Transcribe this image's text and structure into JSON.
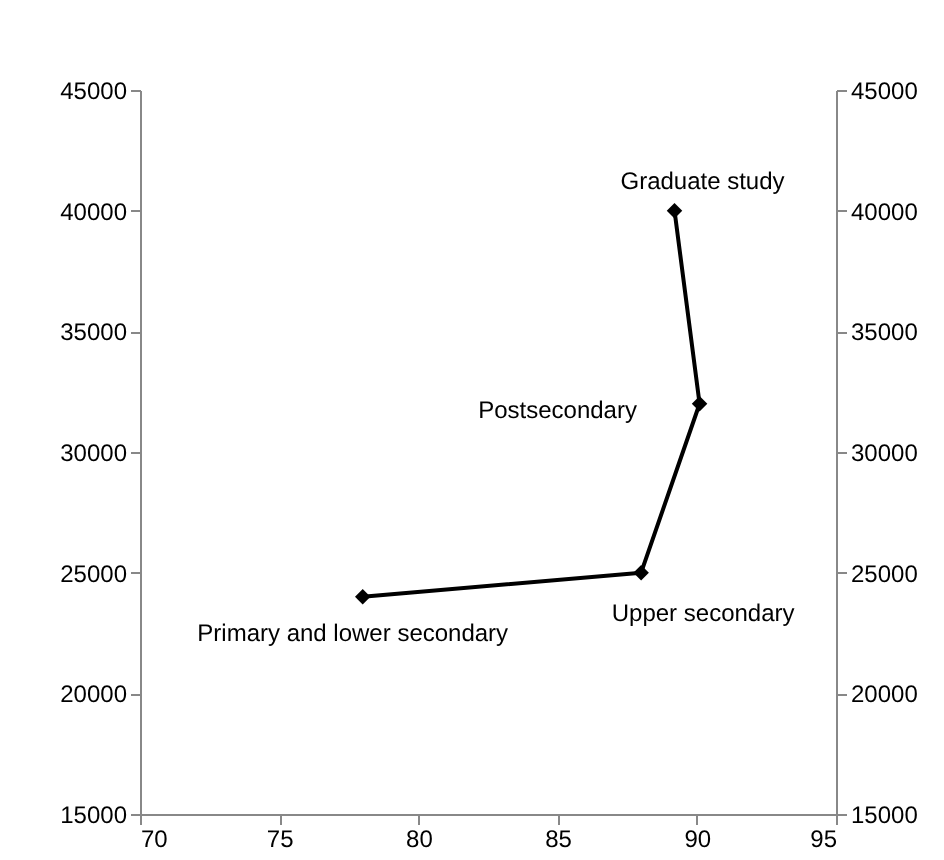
{
  "chart_data": {
    "type": "line",
    "x": [
      78,
      88,
      90.1,
      89.2
    ],
    "series": [
      {
        "color": "#000000",
        "values": [
          24000,
          25000,
          32000,
          40000
        ]
      }
    ],
    "marker": "diamond",
    "line_style": "solid",
    "xlim": [
      70,
      95
    ],
    "xticks": [
      70,
      75,
      80,
      85,
      90,
      95
    ],
    "ylim": [
      15000,
      45000
    ],
    "yticks": [
      15000,
      20000,
      25000,
      30000,
      35000,
      40000,
      45000
    ],
    "y2lim": [
      15000,
      45000
    ],
    "y2ticks": [
      15000,
      20000,
      25000,
      30000,
      35000,
      40000,
      45000
    ],
    "annotations": [
      {
        "text": "Primary and lower secondary",
        "x": 78,
        "y": 24000
      },
      {
        "text": "Upper secondary",
        "x": 88,
        "y": 25000
      },
      {
        "text": "Postsecondary",
        "x": 90.1,
        "y": 32000
      },
      {
        "text": "Graduate study",
        "x": 89.2,
        "y": 40000
      }
    ]
  }
}
